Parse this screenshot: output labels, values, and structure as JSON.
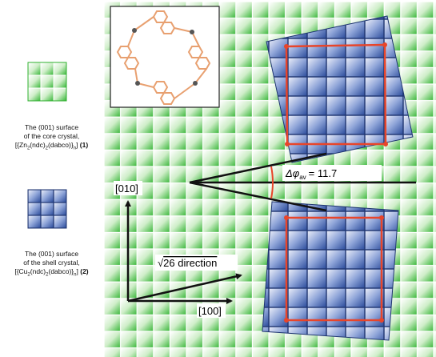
{
  "labels": {
    "core_caption": [
      "The (001) surface",
      "of the core crystal,"
    ],
    "shell_caption": [
      "The (001) surface",
      "of the shell crystal,"
    ],
    "core_formula": {
      "pre": "[{Zn",
      "s1": "2",
      "m1": "(ndc)",
      "s2": "2",
      "m2": "(dabco)}",
      "s3": "n",
      "post": "]",
      "tag": "(1)"
    },
    "shell_formula": {
      "pre": "[{Cu",
      "s1": "2",
      "m1": "(ndc)",
      "s2": "2",
      "m2": "(dabco)}",
      "s3": "n",
      "post": "]",
      "tag": "(2)"
    },
    "axis_010": "[010]",
    "axis_100": "[100]",
    "direction_label": "26 direction",
    "direction_sqrt": "√",
    "angle_symbol": "Δφ",
    "angle_sub": "av",
    "angle_value": "= 11.7"
  },
  "colors": {
    "green_tile": "#2fb02f",
    "blue_tile": "#3a5fb0",
    "red_frame": "#e8452a",
    "molecule": "#e8a070",
    "arrow": "#111111"
  },
  "parameters": {
    "rotation_deg": 11.7
  }
}
